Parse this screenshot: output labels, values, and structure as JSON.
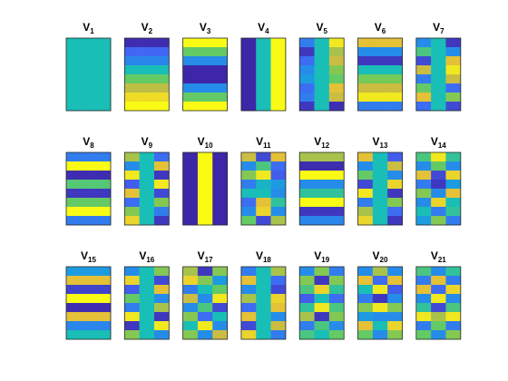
{
  "chart_data": [
    {
      "type": "image",
      "colormap": "parula",
      "clim": [
        0,
        1
      ],
      "title": {
        "text": "V",
        "subscript": "1"
      },
      "values": [
        [
          0.5,
          0.5,
          0.5
        ],
        [
          0.5,
          0.5,
          0.5
        ],
        [
          0.5,
          0.5,
          0.5
        ],
        [
          0.5,
          0.5,
          0.5
        ],
        [
          0.5,
          0.5,
          0.5
        ],
        [
          0.5,
          0.5,
          0.5
        ],
        [
          0.5,
          0.5,
          0.5
        ],
        [
          0.5,
          0.5,
          0.5
        ]
      ]
    },
    {
      "type": "image",
      "colormap": "parula",
      "clim": [
        0,
        1
      ],
      "title": {
        "text": "V",
        "subscript": "2"
      },
      "values": [
        [
          0.02,
          0.02,
          0.02
        ],
        [
          0.18,
          0.18,
          0.18
        ],
        [
          0.28,
          0.28,
          0.28
        ],
        [
          0.5,
          0.5,
          0.5
        ],
        [
          0.65,
          0.65,
          0.65
        ],
        [
          0.78,
          0.78,
          0.78
        ],
        [
          0.92,
          0.92,
          0.92
        ],
        [
          1,
          1,
          1
        ]
      ]
    },
    {
      "type": "image",
      "colormap": "parula",
      "clim": [
        0,
        1
      ],
      "title": {
        "text": "V",
        "subscript": "3"
      },
      "values": [
        [
          1,
          1,
          1
        ],
        [
          0.65,
          0.65,
          0.65
        ],
        [
          0.3,
          0.3,
          0.3
        ],
        [
          0,
          0,
          0
        ],
        [
          0,
          0,
          0
        ],
        [
          0.3,
          0.3,
          0.3
        ],
        [
          0.65,
          0.65,
          0.65
        ],
        [
          1,
          1,
          1
        ]
      ]
    },
    {
      "type": "image",
      "colormap": "parula",
      "clim": [
        0,
        1
      ],
      "title": {
        "text": "V",
        "subscript": "4"
      },
      "values": [
        [
          0,
          0.5,
          1
        ],
        [
          0,
          0.5,
          1
        ],
        [
          0,
          0.5,
          1
        ],
        [
          0,
          0.5,
          1
        ],
        [
          0,
          0.5,
          1
        ],
        [
          0,
          0.5,
          1
        ],
        [
          0,
          0.5,
          1
        ],
        [
          0,
          0.5,
          1
        ]
      ]
    },
    {
      "type": "image",
      "colormap": "parula",
      "clim": [
        0,
        1
      ],
      "title": {
        "text": "V",
        "subscript": "5"
      },
      "values": [
        [
          0.25,
          0.5,
          0.95
        ],
        [
          0.05,
          0.5,
          0.75
        ],
        [
          0.2,
          0.5,
          0.8
        ],
        [
          0.3,
          0.5,
          0.7
        ],
        [
          0.35,
          0.5,
          0.65
        ],
        [
          0.2,
          0.5,
          0.85
        ],
        [
          0.25,
          0.5,
          0.8
        ],
        [
          0.05,
          0.5,
          0.02
        ]
      ]
    },
    {
      "type": "image",
      "colormap": "parula",
      "clim": [
        0,
        1
      ],
      "title": {
        "text": "V",
        "subscript": "6"
      },
      "values": [
        [
          0.85,
          0.85,
          0.85
        ],
        [
          0.3,
          0.3,
          0.3
        ],
        [
          0.05,
          0.05,
          0.05
        ],
        [
          0.5,
          0.5,
          0.5
        ],
        [
          0.68,
          0.68,
          0.68
        ],
        [
          0.8,
          0.8,
          0.8
        ],
        [
          0.95,
          0.95,
          0.95
        ],
        [
          0.25,
          0.25,
          0.25
        ]
      ]
    },
    {
      "type": "image",
      "colormap": "parula",
      "clim": [
        0,
        1
      ],
      "title": {
        "text": "V",
        "subscript": "7"
      },
      "values": [
        [
          0.3,
          0.5,
          0.05
        ],
        [
          0.6,
          0.5,
          0.3
        ],
        [
          0.1,
          0.5,
          0.85
        ],
        [
          0.8,
          0.5,
          0.95
        ],
        [
          0.25,
          0.5,
          0.8
        ],
        [
          0.65,
          0.5,
          0.2
        ],
        [
          0.85,
          0.5,
          0.7
        ],
        [
          0.2,
          0.5,
          0.1
        ]
      ]
    },
    {
      "type": "image",
      "colormap": "parula",
      "clim": [
        0,
        1
      ],
      "title": {
        "text": "V",
        "subscript": "8"
      },
      "values": [
        [
          0.25,
          0.25,
          0.25
        ],
        [
          1,
          1,
          1
        ],
        [
          0.02,
          0.02,
          0.02
        ],
        [
          0.62,
          0.62,
          0.62
        ],
        [
          0.05,
          0.05,
          0.05
        ],
        [
          0.65,
          0.65,
          0.65
        ],
        [
          1,
          1,
          1
        ],
        [
          0.25,
          0.25,
          0.25
        ]
      ]
    },
    {
      "type": "image",
      "colormap": "parula",
      "clim": [
        0,
        1
      ],
      "title": {
        "text": "V",
        "subscript": "9"
      },
      "values": [
        [
          0.75,
          0.5,
          0.2
        ],
        [
          0.3,
          0.5,
          0.85
        ],
        [
          0.95,
          0.5,
          0.05
        ],
        [
          0.15,
          0.5,
          0.95
        ],
        [
          0.85,
          0.5,
          0.1
        ],
        [
          0.2,
          0.5,
          0.7
        ],
        [
          0.7,
          0.5,
          0.25
        ],
        [
          0.9,
          0.5,
          0.05
        ]
      ]
    },
    {
      "type": "image",
      "colormap": "parula",
      "clim": [
        0,
        1
      ],
      "title": {
        "text": "V",
        "subscript": "10"
      },
      "values": [
        [
          0,
          1,
          0
        ],
        [
          0,
          1,
          0
        ],
        [
          0,
          1,
          0
        ],
        [
          0,
          1,
          0
        ],
        [
          0,
          1,
          0
        ],
        [
          0,
          1,
          0
        ],
        [
          0,
          1,
          0
        ],
        [
          0,
          1,
          0
        ]
      ]
    },
    {
      "type": "image",
      "colormap": "parula",
      "clim": [
        0,
        1
      ],
      "title": {
        "text": "V",
        "subscript": "11"
      },
      "values": [
        [
          0.8,
          0.1,
          0.85
        ],
        [
          0.3,
          0.6,
          0.2
        ],
        [
          0.7,
          0.95,
          0.15
        ],
        [
          0.25,
          0.45,
          0.35
        ],
        [
          0.5,
          0.5,
          0.3
        ],
        [
          0.2,
          0.85,
          0.55
        ],
        [
          0.3,
          0.9,
          0.3
        ],
        [
          0.65,
          0.1,
          0.75
        ]
      ]
    },
    {
      "type": "image",
      "colormap": "parula",
      "clim": [
        0,
        1
      ],
      "title": {
        "text": "V",
        "subscript": "12"
      },
      "values": [
        [
          0.75,
          0.75,
          0.75
        ],
        [
          0.02,
          0.02,
          0.02
        ],
        [
          1,
          1,
          1
        ],
        [
          0.3,
          0.3,
          0.3
        ],
        [
          0.55,
          0.55,
          0.55
        ],
        [
          1,
          1,
          1
        ],
        [
          0.05,
          0.05,
          0.05
        ],
        [
          0.28,
          0.28,
          0.28
        ]
      ]
    },
    {
      "type": "image",
      "colormap": "parula",
      "clim": [
        0,
        1
      ],
      "title": {
        "text": "V",
        "subscript": "13"
      },
      "values": [
        [
          0.85,
          0.5,
          0.15
        ],
        [
          0.3,
          0.5,
          0.8
        ],
        [
          0.65,
          0.5,
          0.3
        ],
        [
          0.1,
          0.5,
          0.9
        ],
        [
          0.95,
          0.5,
          0.05
        ],
        [
          0.25,
          0.5,
          0.7
        ],
        [
          0.75,
          0.5,
          0.2
        ],
        [
          0.9,
          0.5,
          0.05
        ]
      ]
    },
    {
      "type": "image",
      "colormap": "parula",
      "clim": [
        0,
        1
      ],
      "title": {
        "text": "V",
        "subscript": "14"
      },
      "values": [
        [
          0.6,
          0.95,
          0.55
        ],
        [
          0.3,
          0.65,
          0.3
        ],
        [
          0.85,
          0.1,
          0.9
        ],
        [
          0.25,
          0.05,
          0.35
        ],
        [
          0.7,
          0.3,
          0.85
        ],
        [
          0.3,
          0.9,
          0.5
        ],
        [
          0.5,
          0.25,
          0.55
        ],
        [
          0.35,
          0.7,
          0.25
        ]
      ]
    },
    {
      "type": "image",
      "colormap": "parula",
      "clim": [
        0,
        1
      ],
      "title": {
        "text": "V",
        "subscript": "15"
      },
      "values": [
        [
          0.35,
          0.35,
          0.35
        ],
        [
          0.85,
          0.85,
          0.85
        ],
        [
          0.08,
          0.08,
          0.08
        ],
        [
          1,
          1,
          1
        ],
        [
          0.02,
          0.02,
          0.02
        ],
        [
          0.85,
          0.85,
          0.85
        ],
        [
          0.28,
          0.28,
          0.28
        ],
        [
          0.5,
          0.5,
          0.5
        ]
      ]
    },
    {
      "type": "image",
      "colormap": "parula",
      "clim": [
        0,
        1
      ],
      "title": {
        "text": "V",
        "subscript": "16"
      },
      "values": [
        [
          0.3,
          0.5,
          0.7
        ],
        [
          0.9,
          0.5,
          0.1
        ],
        [
          0.15,
          0.5,
          0.85
        ],
        [
          0.65,
          0.5,
          0.3
        ],
        [
          0.25,
          0.5,
          0.75
        ],
        [
          0.95,
          0.5,
          0.05
        ],
        [
          0.05,
          0.5,
          0.95
        ],
        [
          0.7,
          0.5,
          0.3
        ]
      ]
    },
    {
      "type": "image",
      "colormap": "parula",
      "clim": [
        0,
        1
      ],
      "title": {
        "text": "V",
        "subscript": "17"
      },
      "values": [
        [
          0.75,
          0.05,
          0.7
        ],
        [
          0.9,
          0.7,
          0.35
        ],
        [
          0.25,
          0.5,
          0.65
        ],
        [
          0.8,
          0.3,
          0.95
        ],
        [
          0.3,
          0.6,
          0.1
        ],
        [
          0.7,
          0.2,
          0.5
        ],
        [
          0.5,
          0.95,
          0.3
        ],
        [
          0.7,
          0.3,
          0.8
        ]
      ]
    },
    {
      "type": "image",
      "colormap": "parula",
      "clim": [
        0,
        1
      ],
      "title": {
        "text": "V",
        "subscript": "18"
      },
      "values": [
        [
          0.25,
          0.5,
          0.75
        ],
        [
          0.85,
          0.5,
          0.2
        ],
        [
          0.3,
          0.5,
          0.1
        ],
        [
          0.75,
          0.5,
          0.9
        ],
        [
          0.2,
          0.5,
          0.85
        ],
        [
          0.85,
          0.5,
          0.3
        ],
        [
          0.1,
          0.5,
          0.8
        ],
        [
          0.9,
          0.5,
          0.25
        ]
      ]
    },
    {
      "type": "image",
      "colormap": "parula",
      "clim": [
        0,
        1
      ],
      "title": {
        "text": "V",
        "subscript": "19"
      },
      "values": [
        [
          0.3,
          0.7,
          0.25
        ],
        [
          0.7,
          0.05,
          0.7
        ],
        [
          0.6,
          0.9,
          0.55
        ],
        [
          0.15,
          0.5,
          0.2
        ],
        [
          0.55,
          0.95,
          0.6
        ],
        [
          0.75,
          0.05,
          0.7
        ],
        [
          0.25,
          0.6,
          0.3
        ],
        [
          0.6,
          0.5,
          0.65
        ]
      ]
    },
    {
      "type": "image",
      "colormap": "parula",
      "clim": [
        0,
        1
      ],
      "title": {
        "text": "V",
        "subscript": "20"
      },
      "values": [
        [
          0.3,
          0.75,
          0.3
        ],
        [
          0.85,
          0.2,
          0.85
        ],
        [
          0.5,
          0.95,
          0.15
        ],
        [
          0.25,
          0.05,
          0.3
        ],
        [
          0.7,
          0.95,
          0.7
        ],
        [
          0.35,
          0.3,
          0.3
        ],
        [
          0.85,
          0.5,
          0.9
        ],
        [
          0.65,
          0.3,
          0.7
        ]
      ]
    },
    {
      "type": "image",
      "colormap": "parula",
      "clim": [
        0,
        1
      ],
      "title": {
        "text": "V",
        "subscript": "21"
      },
      "values": [
        [
          0.6,
          0.3,
          0.55
        ],
        [
          0.25,
          0.85,
          0.25
        ],
        [
          0.85,
          0.2,
          0.9
        ],
        [
          0.3,
          0.95,
          0.3
        ],
        [
          0.55,
          0.1,
          0.6
        ],
        [
          0.95,
          0.75,
          0.95
        ],
        [
          0.25,
          0.65,
          0.25
        ],
        [
          0.65,
          0.3,
          0.7
        ]
      ]
    }
  ]
}
